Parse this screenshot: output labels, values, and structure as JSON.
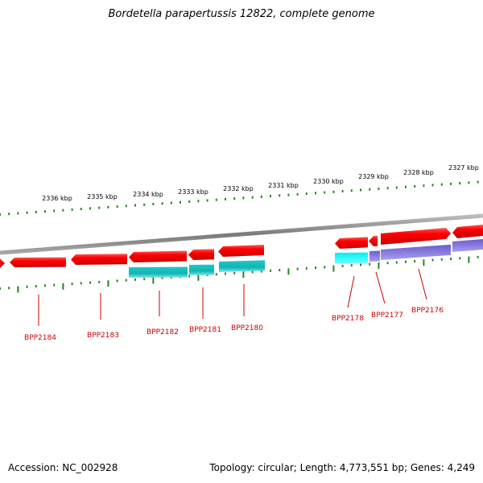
{
  "title": "Bordetella parapertussis 12822, complete genome",
  "footer": {
    "accession": "Accession: NC_002928",
    "summary": "Topology: circular; Length: 4,773,551 bp; Genes: 4,249"
  },
  "colors": {
    "forward_gene": "#ff0000",
    "cds_teal": "#20c8c8",
    "cds_cyan": "#00ffff",
    "cds_purple": "#7766dd",
    "ruler_tick": "#228822",
    "backbone": "#8c8c8c",
    "label": "#cc0000"
  },
  "ruler": {
    "labels": [
      "2336 kbp",
      "2335 kbp",
      "2334 kbp",
      "2333 kbp",
      "2332 kbp",
      "2331 kbp",
      "2330 kbp",
      "2329 kbp",
      "2328 kbp",
      "2327 kbp"
    ]
  },
  "genes": {
    "labels": [
      "BPP2184",
      "BPP2183",
      "BPP2182",
      "BPP2181",
      "BPP2180",
      "BPP2178",
      "BPP2177",
      "BPP2176"
    ]
  }
}
